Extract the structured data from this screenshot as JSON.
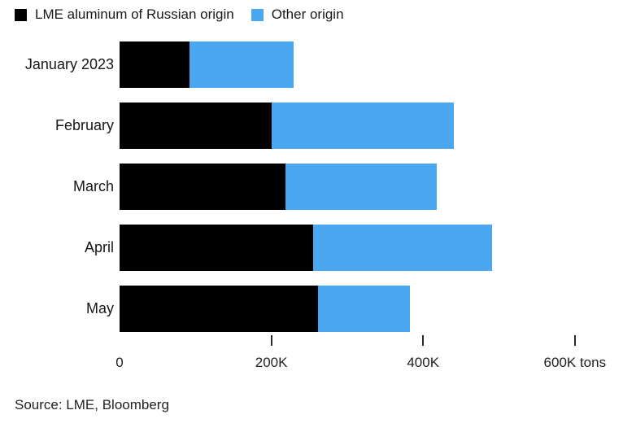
{
  "colors": {
    "russian_bar": "#000000",
    "other_bar": "#4AA7F0",
    "text": "#1a1a1a"
  },
  "source": {
    "text": "Source: LME, Bloomberg"
  },
  "chart_data": {
    "type": "bar",
    "orientation": "horizontal",
    "stacked": true,
    "grid": false,
    "legend_position": "top-left",
    "title": "",
    "xlabel": "",
    "ylabel": "",
    "unit": "K tons",
    "categories": [
      "January 2023",
      "February",
      "March",
      "April",
      "May"
    ],
    "series": [
      {
        "name": "LME aluminum of Russian origin",
        "color": "#000000",
        "values": [
          92,
          200,
          219,
          255,
          262
        ]
      },
      {
        "name": "Other origin",
        "color": "#4AA7F0",
        "values": [
          137,
          240,
          199,
          236,
          121
        ]
      }
    ],
    "totals": [
      229,
      440,
      418,
      491,
      383
    ],
    "xlim": [
      0,
      642
    ],
    "x_ticks": [
      {
        "value": 0,
        "label": "0",
        "mark": false
      },
      {
        "value": 200,
        "label": "200K",
        "mark": true
      },
      {
        "value": 400,
        "label": "400K",
        "mark": true
      },
      {
        "value": 600,
        "label": "600K tons",
        "mark": true
      }
    ]
  }
}
